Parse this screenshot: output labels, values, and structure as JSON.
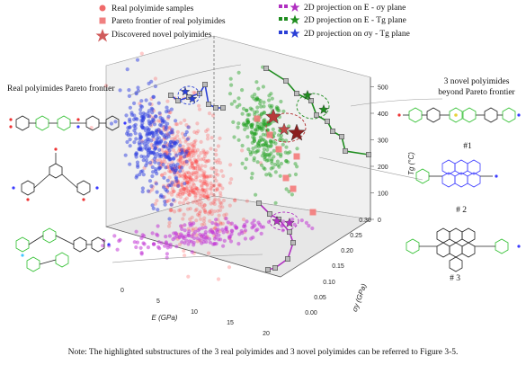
{
  "chart_data": {
    "type": "scatter",
    "projection": "3d",
    "x_axis": {
      "label": "E (GPa)",
      "ticks": [
        "0",
        "5",
        "10",
        "15",
        "20"
      ],
      "range": [
        0,
        20
      ]
    },
    "y_axis": {
      "label": "σy (GPa)",
      "ticks": [
        "0.00",
        "0.05",
        "0.10",
        "0.15",
        "0.20",
        "0.25",
        "0.30"
      ],
      "range": [
        0,
        0.3
      ]
    },
    "z_axis": {
      "label": "Tg (°C)",
      "ticks": [
        "0",
        "100",
        "200",
        "300",
        "400",
        "500"
      ],
      "range": [
        0,
        500
      ]
    },
    "legend_placement": "top",
    "legend": [
      {
        "label": "Real polyimide samples",
        "marker": "circle",
        "color": "#f06a6a"
      },
      {
        "label": "Pareto frontier of real polyimides",
        "marker": "square",
        "color": "#f08080"
      },
      {
        "label": "Discovered novel polyimides",
        "marker": "star",
        "color": "#d05a5a"
      },
      {
        "label": "2D projection on E - σy plane",
        "marker": "square+star",
        "color": "#b030c0"
      },
      {
        "label": "2D projection on E - Tg plane",
        "marker": "square+star",
        "color": "#1e8c1e"
      },
      {
        "label": "2D projection on σy - Tg plane",
        "marker": "square+star",
        "color": "#2a3fd6"
      }
    ],
    "clouds": [
      {
        "name": "Real polyimide samples",
        "color": "#ff3030",
        "x_mean": 5.0,
        "y_mean": 0.09,
        "z_mean": 310,
        "n": 550
      },
      {
        "name": "Projection E - σy",
        "color": "#c23bd6",
        "x_mean": 6.0,
        "y_mean": 0.09,
        "z_mean": 0,
        "n": 180
      },
      {
        "name": "Projection E - Tg",
        "color": "#22a022",
        "x_mean": 5.5,
        "y_mean": 0.3,
        "z_mean": 310,
        "n": 260
      },
      {
        "name": "Projection σy - Tg",
        "color": "#2d3ee0",
        "x_mean": 0.0,
        "y_mean": 0.08,
        "z_mean": 320,
        "n": 320
      }
    ],
    "pareto_points": [
      {
        "x": 11.5,
        "y": 0.22,
        "z": 430
      },
      {
        "x": 13.5,
        "y": 0.19,
        "z": 385
      },
      {
        "x": 15.0,
        "y": 0.16,
        "z": 345
      },
      {
        "x": 16.5,
        "y": 0.13,
        "z": 300
      },
      {
        "x": 17.5,
        "y": 0.1,
        "z": 255
      },
      {
        "x": 18.5,
        "y": 0.07,
        "z": 210
      },
      {
        "x": 19.5,
        "y": 0.05,
        "z": 165
      }
    ],
    "novel_polyimides": [
      {
        "x": 8.5,
        "y": 0.15,
        "z": 470
      },
      {
        "x": 9.5,
        "y": 0.18,
        "z": 450
      },
      {
        "x": 10.5,
        "y": 0.21,
        "z": 415
      }
    ]
  },
  "labels": {
    "left_title": "Real polyimides Pareto frontier",
    "right_title_line1": "3 novel polyimides",
    "right_title_line2": "beyond Pareto frontier",
    "novel_1": "#1",
    "novel_2": "# 2",
    "novel_3": "# 3",
    "note": "Note: The highlighted substructures of the 3 real polyimides and 3 novel polyimides can be referred to Figure 3-5."
  }
}
